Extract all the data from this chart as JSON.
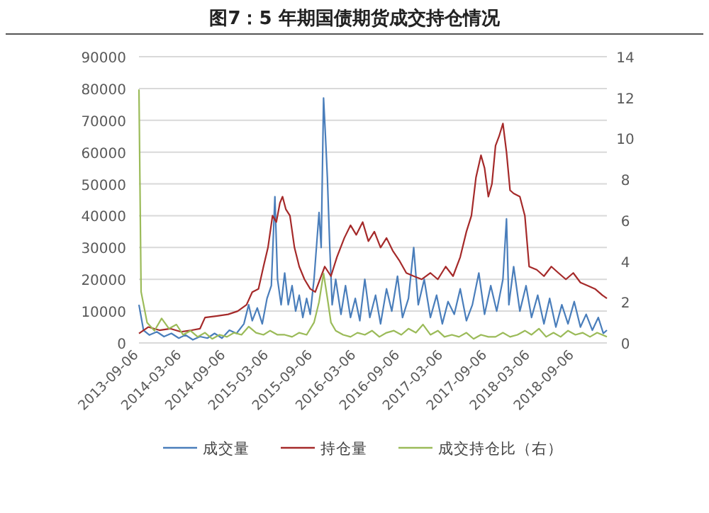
{
  "chart_data": {
    "type": "line",
    "title": "图7：5 年期国债期货成交持仓情况",
    "xlim": [
      "2013-09-06",
      "2019-01-20"
    ],
    "xticks": [
      "2013-09-06",
      "2014-03-06",
      "2014-09-06",
      "2015-03-06",
      "2015-09-06",
      "2016-03-06",
      "2016-09-06",
      "2017-03-06",
      "2017-09-06",
      "2018-03-06",
      "2018-09-06"
    ],
    "ylim": [
      0,
      90000
    ],
    "yticks": [
      0,
      10000,
      20000,
      30000,
      40000,
      50000,
      60000,
      70000,
      80000,
      90000
    ],
    "y2lim": [
      0,
      14
    ],
    "y2ticks": [
      0,
      2,
      4,
      6,
      8,
      10,
      12,
      14
    ],
    "grid": "y",
    "legend": "bottom",
    "marker": "none",
    "line_style": "solid",
    "series": [
      {
        "name": "成交量",
        "color": "#4a7ebb",
        "x": [
          "2013-09-06",
          "2013-09-25",
          "2013-10-20",
          "2013-11-20",
          "2013-12-20",
          "2014-01-20",
          "2014-02-20",
          "2014-03-20",
          "2014-04-20",
          "2014-05-20",
          "2014-06-20",
          "2014-07-20",
          "2014-08-20",
          "2014-09-20",
          "2014-10-20",
          "2014-11-20",
          "2014-12-10",
          "2014-12-25",
          "2015-01-15",
          "2015-02-05",
          "2015-02-25",
          "2015-03-15",
          "2015-03-30",
          "2015-04-10",
          "2015-04-25",
          "2015-05-10",
          "2015-05-25",
          "2015-06-10",
          "2015-06-25",
          "2015-07-10",
          "2015-07-25",
          "2015-08-10",
          "2015-08-25",
          "2015-09-10",
          "2015-10-01",
          "2015-10-10",
          "2015-10-20",
          "2015-10-28",
          "2015-11-05",
          "2015-11-15",
          "2015-11-25",
          "2015-12-10",
          "2016-01-01",
          "2016-01-20",
          "2016-02-10",
          "2016-03-01",
          "2016-03-20",
          "2016-04-10",
          "2016-05-01",
          "2016-05-25",
          "2016-06-15",
          "2016-07-10",
          "2016-08-01",
          "2016-08-25",
          "2016-09-15",
          "2016-10-10",
          "2016-11-01",
          "2016-11-20",
          "2016-12-15",
          "2017-01-10",
          "2017-02-05",
          "2017-03-01",
          "2017-03-25",
          "2017-04-20",
          "2017-05-15",
          "2017-06-10",
          "2017-07-05",
          "2017-08-01",
          "2017-08-25",
          "2017-09-20",
          "2017-10-15",
          "2017-11-10",
          "2017-11-25",
          "2017-12-05",
          "2017-12-25",
          "2018-01-20",
          "2018-02-15",
          "2018-03-10",
          "2018-04-05",
          "2018-05-01",
          "2018-05-25",
          "2018-06-20",
          "2018-07-15",
          "2018-08-10",
          "2018-09-05",
          "2018-10-01",
          "2018-10-25",
          "2018-11-20",
          "2018-12-15",
          "2019-01-05",
          "2019-01-20"
        ],
        "values": [
          12000,
          4000,
          2500,
          3500,
          2000,
          3000,
          1500,
          2500,
          1000,
          2000,
          1500,
          3000,
          1500,
          4000,
          3000,
          6000,
          12000,
          7000,
          11000,
          6000,
          14000,
          18000,
          46000,
          20000,
          12000,
          22000,
          12000,
          18000,
          10000,
          15000,
          8000,
          14000,
          9000,
          20000,
          41000,
          30000,
          77000,
          65000,
          52000,
          30000,
          12000,
          20000,
          9000,
          18000,
          8000,
          14000,
          7000,
          20000,
          8000,
          15000,
          6000,
          17000,
          10000,
          21000,
          8000,
          14000,
          30000,
          12000,
          20000,
          8000,
          15000,
          6000,
          13000,
          9000,
          17000,
          7000,
          12000,
          22000,
          9000,
          18000,
          10000,
          20000,
          39000,
          12000,
          24000,
          10000,
          18000,
          8000,
          15000,
          6000,
          14000,
          5000,
          12000,
          6000,
          13000,
          5000,
          9000,
          4000,
          8000,
          3000,
          4000
        ]
      },
      {
        "name": "持仓量",
        "color": "#a52a2a",
        "x": [
          "2013-09-06",
          "2013-10-15",
          "2013-12-01",
          "2014-01-15",
          "2014-03-01",
          "2014-04-15",
          "2014-05-20",
          "2014-06-10",
          "2014-08-01",
          "2014-09-15",
          "2014-10-25",
          "2014-12-01",
          "2014-12-25",
          "2015-01-20",
          "2015-02-10",
          "2015-03-01",
          "2015-03-20",
          "2015-04-05",
          "2015-04-20",
          "2015-05-01",
          "2015-05-15",
          "2015-06-01",
          "2015-06-20",
          "2015-07-10",
          "2015-08-01",
          "2015-08-25",
          "2015-09-15",
          "2015-10-05",
          "2015-10-25",
          "2015-11-20",
          "2015-12-15",
          "2016-01-15",
          "2016-02-10",
          "2016-03-05",
          "2016-04-01",
          "2016-04-25",
          "2016-05-20",
          "2016-06-15",
          "2016-07-10",
          "2016-08-05",
          "2016-09-01",
          "2016-10-01",
          "2016-11-01",
          "2016-12-05",
          "2017-01-10",
          "2017-02-10",
          "2017-03-15",
          "2017-04-15",
          "2017-05-15",
          "2017-06-10",
          "2017-07-01",
          "2017-07-20",
          "2017-08-10",
          "2017-08-25",
          "2017-09-10",
          "2017-09-25",
          "2017-10-10",
          "2017-10-25",
          "2017-11-10",
          "2017-11-25",
          "2017-12-10",
          "2017-12-25",
          "2018-01-20",
          "2018-02-10",
          "2018-02-28",
          "2018-04-01",
          "2018-05-01",
          "2018-06-01",
          "2018-07-01",
          "2018-08-01",
          "2018-09-01",
          "2018-10-01",
          "2018-11-01",
          "2018-12-01",
          "2019-01-01",
          "2019-01-20"
        ],
        "values": [
          3000,
          5000,
          4000,
          4500,
          3500,
          4000,
          4500,
          8000,
          8500,
          9000,
          10000,
          12000,
          16000,
          17000,
          24000,
          30000,
          40000,
          38000,
          44000,
          46000,
          42000,
          40000,
          30000,
          24000,
          20000,
          17000,
          16000,
          20000,
          24000,
          21000,
          27000,
          33000,
          37000,
          34000,
          38000,
          32000,
          35000,
          30000,
          33000,
          29000,
          26000,
          22000,
          21000,
          20000,
          22000,
          20000,
          24000,
          21000,
          27000,
          35000,
          40000,
          52000,
          59000,
          55000,
          46000,
          50000,
          62000,
          65000,
          69000,
          60000,
          48000,
          47000,
          46000,
          40000,
          24000,
          23000,
          21000,
          24000,
          22000,
          20000,
          22000,
          19000,
          18000,
          17000,
          15000,
          14000
        ]
      },
      {
        "name": "成交持仓比（右）",
        "color": "#9bbb59",
        "axis": "y2",
        "x": [
          "2013-09-06",
          "2013-09-15",
          "2013-10-10",
          "2013-11-10",
          "2013-12-10",
          "2014-01-10",
          "2014-02-10",
          "2014-03-10",
          "2014-04-10",
          "2014-05-10",
          "2014-06-10",
          "2014-07-10",
          "2014-08-10",
          "2014-09-10",
          "2014-10-10",
          "2014-11-10",
          "2014-12-10",
          "2015-01-10",
          "2015-02-10",
          "2015-03-10",
          "2015-04-10",
          "2015-05-10",
          "2015-06-10",
          "2015-07-10",
          "2015-08-10",
          "2015-09-10",
          "2015-10-01",
          "2015-10-20",
          "2015-11-05",
          "2015-11-20",
          "2015-12-10",
          "2016-01-10",
          "2016-02-10",
          "2016-03-10",
          "2016-04-10",
          "2016-05-10",
          "2016-06-10",
          "2016-07-10",
          "2016-08-10",
          "2016-09-10",
          "2016-10-10",
          "2016-11-10",
          "2016-12-10",
          "2017-01-10",
          "2017-02-10",
          "2017-03-10",
          "2017-04-10",
          "2017-05-10",
          "2017-06-10",
          "2017-07-10",
          "2017-08-10",
          "2017-09-10",
          "2017-10-10",
          "2017-11-10",
          "2017-12-10",
          "2018-01-10",
          "2018-02-10",
          "2018-03-10",
          "2018-04-10",
          "2018-05-10",
          "2018-06-10",
          "2018-07-10",
          "2018-08-10",
          "2018-09-10",
          "2018-10-10",
          "2018-11-10",
          "2018-12-10",
          "2019-01-20"
        ],
        "values": [
          12.4,
          2.5,
          1.0,
          0.6,
          1.2,
          0.7,
          0.9,
          0.4,
          0.6,
          0.3,
          0.5,
          0.2,
          0.4,
          0.3,
          0.5,
          0.4,
          0.8,
          0.5,
          0.4,
          0.6,
          0.4,
          0.4,
          0.3,
          0.5,
          0.4,
          1.0,
          2.0,
          3.4,
          2.2,
          1.0,
          0.6,
          0.4,
          0.3,
          0.5,
          0.4,
          0.6,
          0.3,
          0.5,
          0.6,
          0.4,
          0.7,
          0.5,
          0.9,
          0.4,
          0.6,
          0.3,
          0.4,
          0.3,
          0.5,
          0.2,
          0.4,
          0.3,
          0.3,
          0.5,
          0.3,
          0.4,
          0.6,
          0.4,
          0.7,
          0.3,
          0.5,
          0.3,
          0.6,
          0.4,
          0.5,
          0.3,
          0.5,
          0.3
        ]
      }
    ]
  }
}
